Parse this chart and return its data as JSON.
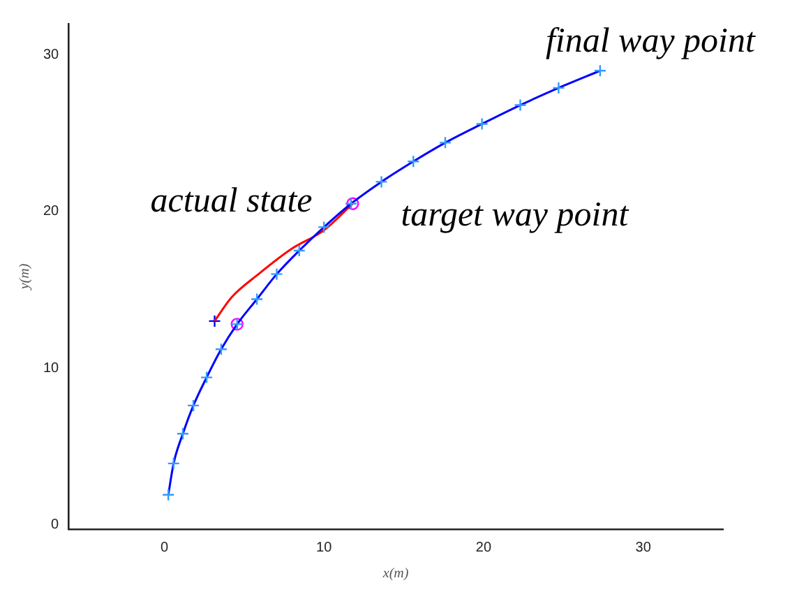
{
  "chart_data": {
    "type": "line",
    "xlabel": "x(m)",
    "ylabel": "y(m)",
    "xlim": [
      -6,
      35
    ],
    "ylim": [
      -0.3,
      32
    ],
    "xticks": [
      0,
      10,
      20,
      30
    ],
    "yticks": [
      0,
      10,
      20,
      30
    ],
    "grid": false,
    "legend": false,
    "series": [
      {
        "color": "#0000ff",
        "marker": "cross",
        "x": [
          0.25,
          0.58,
          1.16,
          1.82,
          2.65,
          3.56,
          4.56,
          5.8,
          7.04,
          8.45,
          10.0,
          11.7,
          13.6,
          15.6,
          17.6,
          19.9,
          22.3,
          24.7,
          27.3
        ],
        "values": [
          1.9,
          3.9,
          5.8,
          7.6,
          9.4,
          11.2,
          12.8,
          14.4,
          16.0,
          17.5,
          19.0,
          20.5,
          21.9,
          23.2,
          24.4,
          25.6,
          26.8,
          27.9,
          29.0
        ]
      },
      {
        "color": "#ff0000",
        "marker": "none",
        "x": [
          3.15,
          4.2,
          5.9,
          7.95,
          10.0,
          11.8
        ],
        "values": [
          13.0,
          14.5,
          16.0,
          17.6,
          18.8,
          20.5
        ]
      },
      {
        "type": "scatter",
        "color": "#0000ff",
        "marker": "cross",
        "x": [
          3.15
        ],
        "values": [
          13.0
        ]
      },
      {
        "type": "scatter",
        "color": "#ff00ff",
        "marker": "circle",
        "x": [
          4.56,
          11.8
        ],
        "values": [
          12.8,
          20.5
        ]
      }
    ],
    "annotations": [
      {
        "text": "actual state",
        "x": 3.15,
        "y": 13.0
      },
      {
        "text": "target way point",
        "x": 11.8,
        "y": 20.5
      },
      {
        "text": "final way point",
        "x": 27.3,
        "y": 29.0
      }
    ]
  }
}
